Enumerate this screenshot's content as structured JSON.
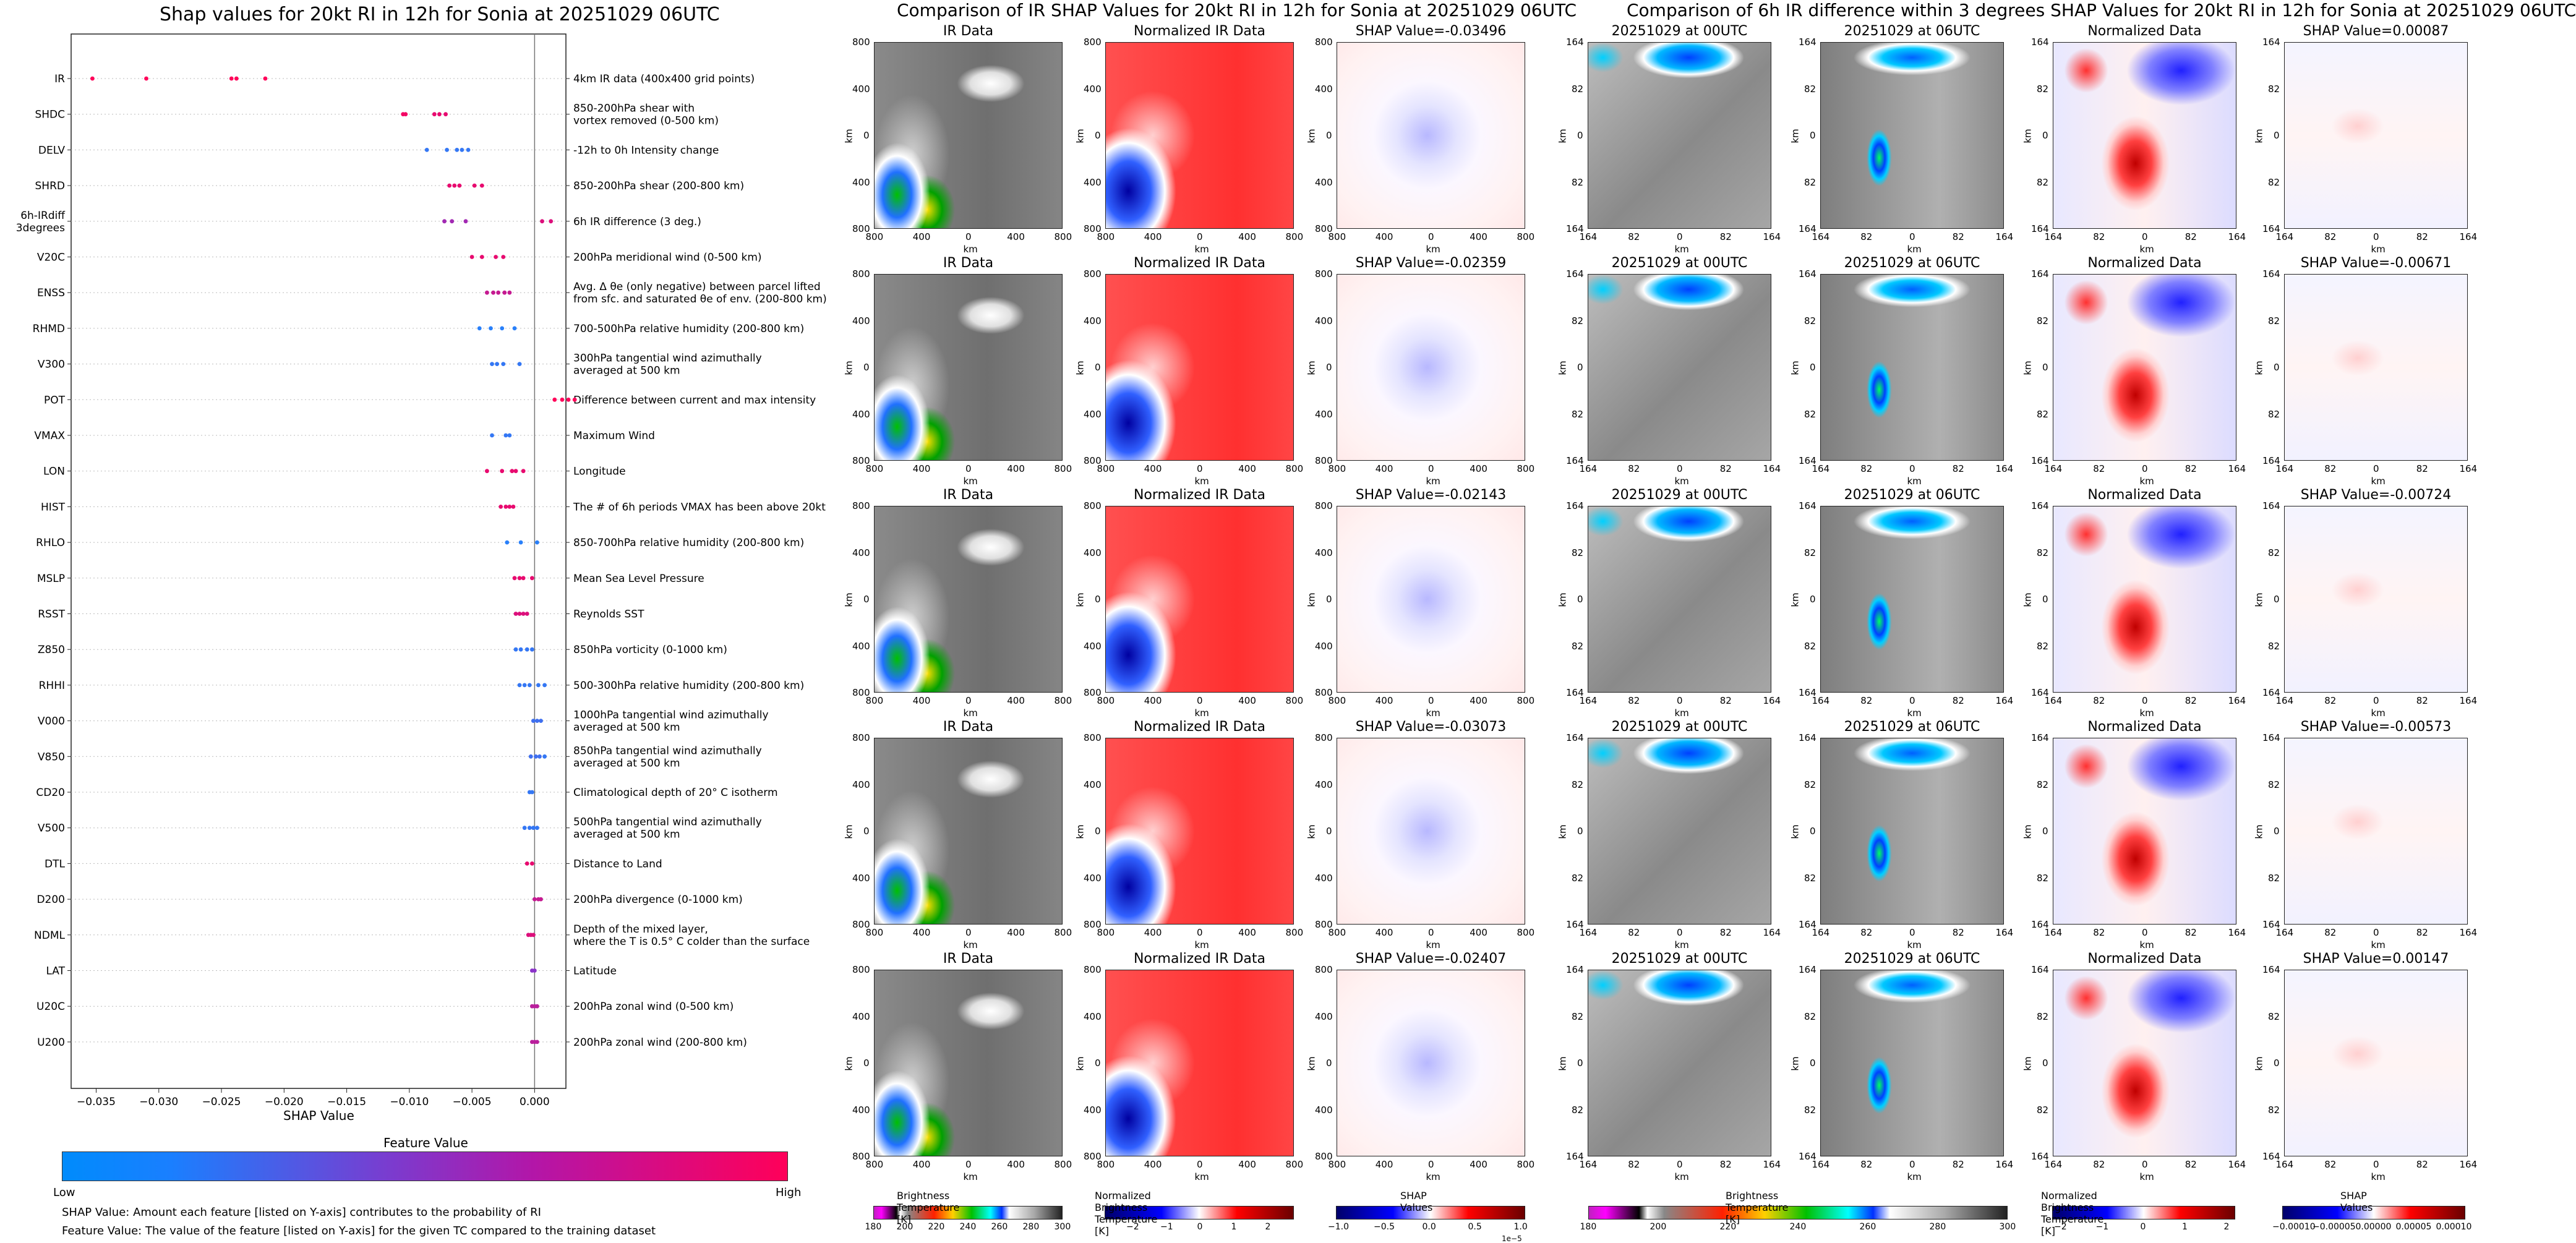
{
  "left_chart": {
    "title": "Shap values for 20kt RI in 12h for Sonia at 20251029 06UTC",
    "xlabel": "SHAP Value",
    "colorbar_title": "Feature Value",
    "colorbar_low": "Low",
    "colorbar_high": "High",
    "note_shap": "SHAP Value: Amount each feature [listed on Y-axis] contributes to the probability of RI",
    "note_feature": "Feature Value: The value of the feature [listed on Y-axis] for the given TC compared to the training dataset",
    "colors": {
      "low": "#1e88ff",
      "mid": "#8b33c9",
      "high": "#ff0059"
    }
  },
  "chart_data": {
    "type": "scatter",
    "xlim": [
      -0.037,
      0.0025
    ],
    "x_ticks": [
      "−0.035",
      "−0.030",
      "−0.025",
      "−0.020",
      "−0.015",
      "−0.010",
      "−0.005",
      "0.000"
    ],
    "x_tick_values": [
      -0.035,
      -0.03,
      -0.025,
      -0.02,
      -0.015,
      -0.01,
      -0.005,
      0.0
    ],
    "features": [
      {
        "name": "IR",
        "desc": [
          "4km IR data (400x400 grid points)"
        ],
        "points": [
          [
            -0.0353,
            1
          ],
          [
            -0.031,
            1
          ],
          [
            -0.0242,
            1
          ],
          [
            -0.0238,
            1
          ],
          [
            -0.0215,
            1
          ]
        ]
      },
      {
        "name": "SHDC",
        "desc": [
          "850-200hPa shear with",
          "vortex removed (0-500 km)"
        ],
        "points": [
          [
            -0.0105,
            0.95
          ],
          [
            -0.0103,
            0.95
          ],
          [
            -0.008,
            0.9
          ],
          [
            -0.0076,
            0.9
          ],
          [
            -0.0071,
            0.9
          ]
        ]
      },
      {
        "name": "DELV",
        "desc": [
          "-12h to 0h Intensity change"
        ],
        "points": [
          [
            -0.0086,
            0.1
          ],
          [
            -0.007,
            0.1
          ],
          [
            -0.0062,
            0.1
          ],
          [
            -0.0058,
            0.1
          ],
          [
            -0.0053,
            0.1
          ]
        ]
      },
      {
        "name": "SHRD",
        "desc": [
          "850-200hPa shear (200-800 km)"
        ],
        "points": [
          [
            -0.0068,
            0.9
          ],
          [
            -0.0064,
            0.9
          ],
          [
            -0.006,
            0.9
          ],
          [
            -0.0048,
            0.9
          ],
          [
            -0.0042,
            0.9
          ]
        ]
      },
      {
        "name": "6h-IRdiff_3degrees",
        "desc": [
          "6h IR difference (3 deg.)"
        ],
        "points": [
          [
            -0.0072,
            0.6
          ],
          [
            -0.0066,
            0.6
          ],
          [
            -0.0055,
            0.6
          ],
          [
            0.0006,
            0.85
          ],
          [
            0.0013,
            0.85
          ]
        ]
      },
      {
        "name": "V20C",
        "desc": [
          "200hPa meridional wind (0-500 km)"
        ],
        "points": [
          [
            -0.005,
            0.9
          ],
          [
            -0.0042,
            0.9
          ],
          [
            -0.0031,
            0.9
          ],
          [
            -0.0025,
            0.9
          ]
        ]
      },
      {
        "name": "ENSS",
        "desc": [
          "Avg. Δ θe (only negative) between parcel lifted",
          "from sfc. and saturated θe of env. (200-800 km)"
        ],
        "points": [
          [
            -0.0038,
            0.75
          ],
          [
            -0.0033,
            0.75
          ],
          [
            -0.0029,
            0.75
          ],
          [
            -0.0024,
            0.75
          ],
          [
            -0.002,
            0.75
          ]
        ]
      },
      {
        "name": "RHMD",
        "desc": [
          "700-500hPa relative humidity (200-800 km)"
        ],
        "points": [
          [
            -0.0044,
            0.05
          ],
          [
            -0.0035,
            0.05
          ],
          [
            -0.0026,
            0.05
          ],
          [
            -0.0016,
            0.05
          ]
        ]
      },
      {
        "name": "V300",
        "desc": [
          "300hPa tangential wind azimuthally",
          "averaged at 500 km"
        ],
        "points": [
          [
            -0.0034,
            0.1
          ],
          [
            -0.003,
            0.1
          ],
          [
            -0.0025,
            0.1
          ],
          [
            -0.0012,
            0.1
          ]
        ]
      },
      {
        "name": "POT",
        "desc": [
          "Difference between current and max intensity"
        ],
        "points": [
          [
            0.0016,
            1
          ],
          [
            0.0022,
            1
          ],
          [
            0.0027,
            1
          ],
          [
            0.0032,
            1
          ]
        ]
      },
      {
        "name": "VMAX",
        "desc": [
          "Maximum Wind"
        ],
        "points": [
          [
            -0.0034,
            0.1
          ],
          [
            -0.0023,
            0.1
          ],
          [
            -0.002,
            0.1
          ]
        ]
      },
      {
        "name": "LON",
        "desc": [
          "Longitude"
        ],
        "points": [
          [
            -0.0038,
            0.9
          ],
          [
            -0.0026,
            0.9
          ],
          [
            -0.0018,
            0.9
          ],
          [
            -0.0015,
            0.9
          ],
          [
            -0.0009,
            0.9
          ]
        ]
      },
      {
        "name": "HIST",
        "desc": [
          "The # of 6h periods VMAX has been above 20kt"
        ],
        "points": [
          [
            -0.0027,
            0.9
          ],
          [
            -0.0023,
            0.9
          ],
          [
            -0.002,
            0.9
          ],
          [
            -0.0017,
            0.9
          ]
        ]
      },
      {
        "name": "RHLO",
        "desc": [
          "850-700hPa relative humidity (200-800 km)"
        ],
        "points": [
          [
            -0.0022,
            0.05
          ],
          [
            -0.0011,
            0.05
          ],
          [
            0.0002,
            0.05
          ]
        ]
      },
      {
        "name": "MSLP",
        "desc": [
          "Mean Sea Level Pressure"
        ],
        "points": [
          [
            -0.0016,
            0.9
          ],
          [
            -0.0012,
            0.9
          ],
          [
            -0.0009,
            0.9
          ],
          [
            -0.0002,
            0.9
          ]
        ]
      },
      {
        "name": "RSST",
        "desc": [
          "Reynolds SST"
        ],
        "points": [
          [
            -0.0015,
            0.85
          ],
          [
            -0.0012,
            0.85
          ],
          [
            -0.0009,
            0.85
          ],
          [
            -0.0006,
            0.85
          ]
        ]
      },
      {
        "name": "Z850",
        "desc": [
          "850hPa vorticity (0-1000 km)"
        ],
        "points": [
          [
            -0.0015,
            0.1
          ],
          [
            -0.0011,
            0.1
          ],
          [
            -0.0006,
            0.1
          ],
          [
            -0.0002,
            0.1
          ]
        ]
      },
      {
        "name": "RHHI",
        "desc": [
          "500-300hPa relative humidity (200-800 km)"
        ],
        "points": [
          [
            -0.0012,
            0.1
          ],
          [
            -0.0008,
            0.1
          ],
          [
            -0.0004,
            0.1
          ],
          [
            0.0003,
            0.1
          ],
          [
            0.0008,
            0.1
          ]
        ]
      },
      {
        "name": "V000",
        "desc": [
          "1000hPa tangential wind azimuthally",
          "averaged at 500 km"
        ],
        "points": [
          [
            -0.0001,
            0.15
          ],
          [
            0.0002,
            0.15
          ],
          [
            0.0005,
            0.15
          ]
        ]
      },
      {
        "name": "V850",
        "desc": [
          "850hPa tangential wind azimuthally",
          "averaged at 500 km"
        ],
        "points": [
          [
            -0.0003,
            0.15
          ],
          [
            0.0001,
            0.15
          ],
          [
            0.0004,
            0.15
          ],
          [
            0.0008,
            0.1
          ]
        ]
      },
      {
        "name": "CD20",
        "desc": [
          "Climatological depth of 20° C isotherm"
        ],
        "points": [
          [
            -0.0004,
            0.1
          ],
          [
            -0.0002,
            0.1
          ]
        ]
      },
      {
        "name": "V500",
        "desc": [
          "500hPa tangential wind azimuthally",
          "averaged at 500 km"
        ],
        "points": [
          [
            -0.0008,
            0.1
          ],
          [
            -0.0004,
            0.1
          ],
          [
            -0.0001,
            0.1
          ],
          [
            0.0002,
            0.1
          ]
        ]
      },
      {
        "name": "DTL",
        "desc": [
          "Distance to Land"
        ],
        "points": [
          [
            -0.0006,
            0.9
          ],
          [
            -0.0002,
            0.9
          ]
        ]
      },
      {
        "name": "D200",
        "desc": [
          "200hPa divergence (0-1000 km)"
        ],
        "points": [
          [
            0.0,
            0.75
          ],
          [
            0.0003,
            0.75
          ],
          [
            0.0005,
            0.75
          ]
        ]
      },
      {
        "name": "NDML",
        "desc": [
          "Depth of the mixed layer,",
          "where the T is 0.5° C colder than the surface"
        ],
        "points": [
          [
            -0.0005,
            0.85
          ],
          [
            -0.0003,
            0.85
          ],
          [
            -0.0001,
            0.85
          ]
        ]
      },
      {
        "name": "LAT",
        "desc": [
          "Latitude"
        ],
        "points": [
          [
            -0.0002,
            0.5
          ],
          [
            0.0,
            0.5
          ]
        ]
      },
      {
        "name": "U20C",
        "desc": [
          "200hPa zonal wind (0-500 km)"
        ],
        "points": [
          [
            -0.0002,
            0.7
          ],
          [
            0.0,
            0.7
          ],
          [
            0.0002,
            0.7
          ]
        ]
      },
      {
        "name": "U200",
        "desc": [
          "200hPa zonal wind (200-800 km)"
        ],
        "points": [
          [
            -0.0002,
            0.7
          ],
          [
            0.0,
            0.7
          ],
          [
            0.0002,
            0.7
          ]
        ]
      }
    ]
  },
  "middle": {
    "title": "Comparison of IR SHAP Values for 20kt RI in 12h for Sonia at 20251029 06UTC",
    "col_titles": [
      "IR Data",
      "Normalized IR Data"
    ],
    "shap_titles": [
      "SHAP Value=-0.03496",
      "SHAP Value=-0.02359",
      "SHAP Value=-0.02143",
      "SHAP Value=-0.03073",
      "SHAP Value=-0.02407"
    ],
    "axis_label": "km",
    "xticks": [
      "800",
      "400",
      "0",
      "400",
      "800"
    ],
    "yticks": [
      "800",
      "400",
      "0",
      "400",
      "800"
    ],
    "colorbars": [
      {
        "label": "Brightness Temperature [K]",
        "ticks": [
          "180",
          "200",
          "220",
          "240",
          "260",
          "280",
          "300"
        ]
      },
      {
        "label": "Normalized Brightness Temperature [K]",
        "ticks": [
          "−2",
          "−1",
          "0",
          "1",
          "2"
        ]
      },
      {
        "label": "SHAP Values",
        "ticks": [
          "−1.0",
          "−0.5",
          "0.0",
          "0.5",
          "1.0"
        ],
        "exponent": "1e−5"
      }
    ]
  },
  "right": {
    "title": "Comparison of 6h IR difference within 3 degrees SHAP Values for 20kt RI in 12h for Sonia at 20251029 06UTC",
    "col_titles": [
      "20251029 at 00UTC",
      "20251029 at 06UTC",
      "Normalized Data"
    ],
    "shap_titles": [
      "SHAP Value=0.00087",
      "SHAP Value=-0.00671",
      "SHAP Value=-0.00724",
      "SHAP Value=-0.00573",
      "SHAP Value=0.00147"
    ],
    "axis_label": "km",
    "xticks": [
      "164",
      "82",
      "0",
      "82",
      "164"
    ],
    "yticks": [
      "164",
      "82",
      "0",
      "82",
      "164"
    ],
    "colorbars": [
      {
        "label": "Brightness Temperature [K]",
        "ticks": [
          "180",
          "200",
          "220",
          "240",
          "260",
          "280",
          "300"
        ]
      },
      {
        "label": "Normalized Brightness Temperature [K]",
        "ticks": [
          "−2",
          "−1",
          "0",
          "1",
          "2"
        ]
      },
      {
        "label": "SHAP Values",
        "ticks": [
          "−0.00010",
          "−0.00005",
          "0.00000",
          "0.00005",
          "0.00010"
        ]
      }
    ]
  }
}
